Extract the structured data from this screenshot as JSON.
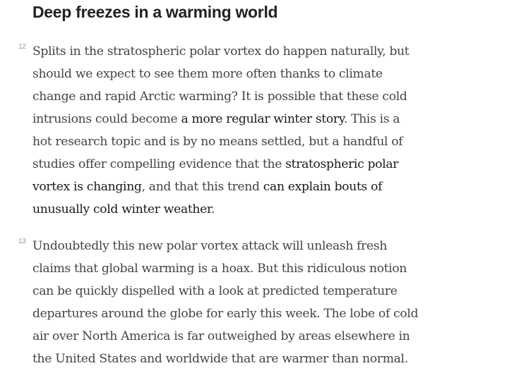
{
  "heading": "Deep freezes in a warming world",
  "paragraphs": [
    {
      "number": "12",
      "lines": [
        [
          {
            "text": "Splits in the stratospheric polar vortex do happen naturally, but"
          }
        ],
        [
          {
            "text": "should we expect to see them more often thanks to climate"
          }
        ],
        [
          {
            "text": "change and rapid Arctic warming? It is possible that these cold"
          }
        ],
        [
          {
            "text": "intrusions could become "
          },
          {
            "text": "a more regular winter story",
            "link": true
          },
          {
            "text": ". This is a"
          }
        ],
        [
          {
            "text": "hot research topic and is by no means settled, but a handful of"
          }
        ],
        [
          {
            "text": "studies offer compelling evidence that the "
          },
          {
            "text": "stratospheric polar",
            "link": true
          }
        ],
        [
          {
            "text": "vortex is changing",
            "link": true
          },
          {
            "text": ", and that this trend "
          },
          {
            "text": "can explain bouts of",
            "link": true
          }
        ],
        [
          {
            "text": "unusually cold winter weather",
            "link": true
          },
          {
            "text": "."
          }
        ]
      ]
    },
    {
      "number": "13",
      "lines": [
        [
          {
            "text": "Undoubtedly this new polar vortex attack will unleash fresh"
          }
        ],
        [
          {
            "text": "claims that global warming is a hoax. But this ridiculous notion"
          }
        ],
        [
          {
            "text": "can be quickly dispelled with a look at predicted temperature"
          }
        ],
        [
          {
            "text": "departures around the globe for early this week. The lobe of cold"
          }
        ],
        [
          {
            "text": "air over North America is far outweighed by areas elsewhere in"
          }
        ],
        [
          {
            "text": "the United States and worldwide that are warmer than normal."
          }
        ]
      ]
    }
  ]
}
